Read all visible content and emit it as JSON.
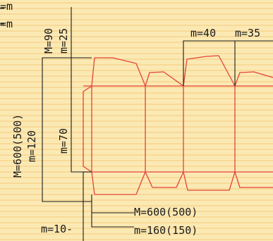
{
  "colors": {
    "background": "#fbe9b4",
    "paper_line": "#f4c97a",
    "outline": "#e2453a",
    "dimension": "#1a1a1a"
  },
  "labels": {
    "top_left_1": "=m",
    "top_left_2": "=m",
    "m90": "M=90",
    "m25": "m=25",
    "m40": "m=40",
    "m35": "m=35",
    "m600_left": "M=600(500)",
    "m120": "m=120",
    "m70": "m=70",
    "m600_bottom": "M=600(500)",
    "m10": "m=10-",
    "m160": "m=160(150)"
  }
}
